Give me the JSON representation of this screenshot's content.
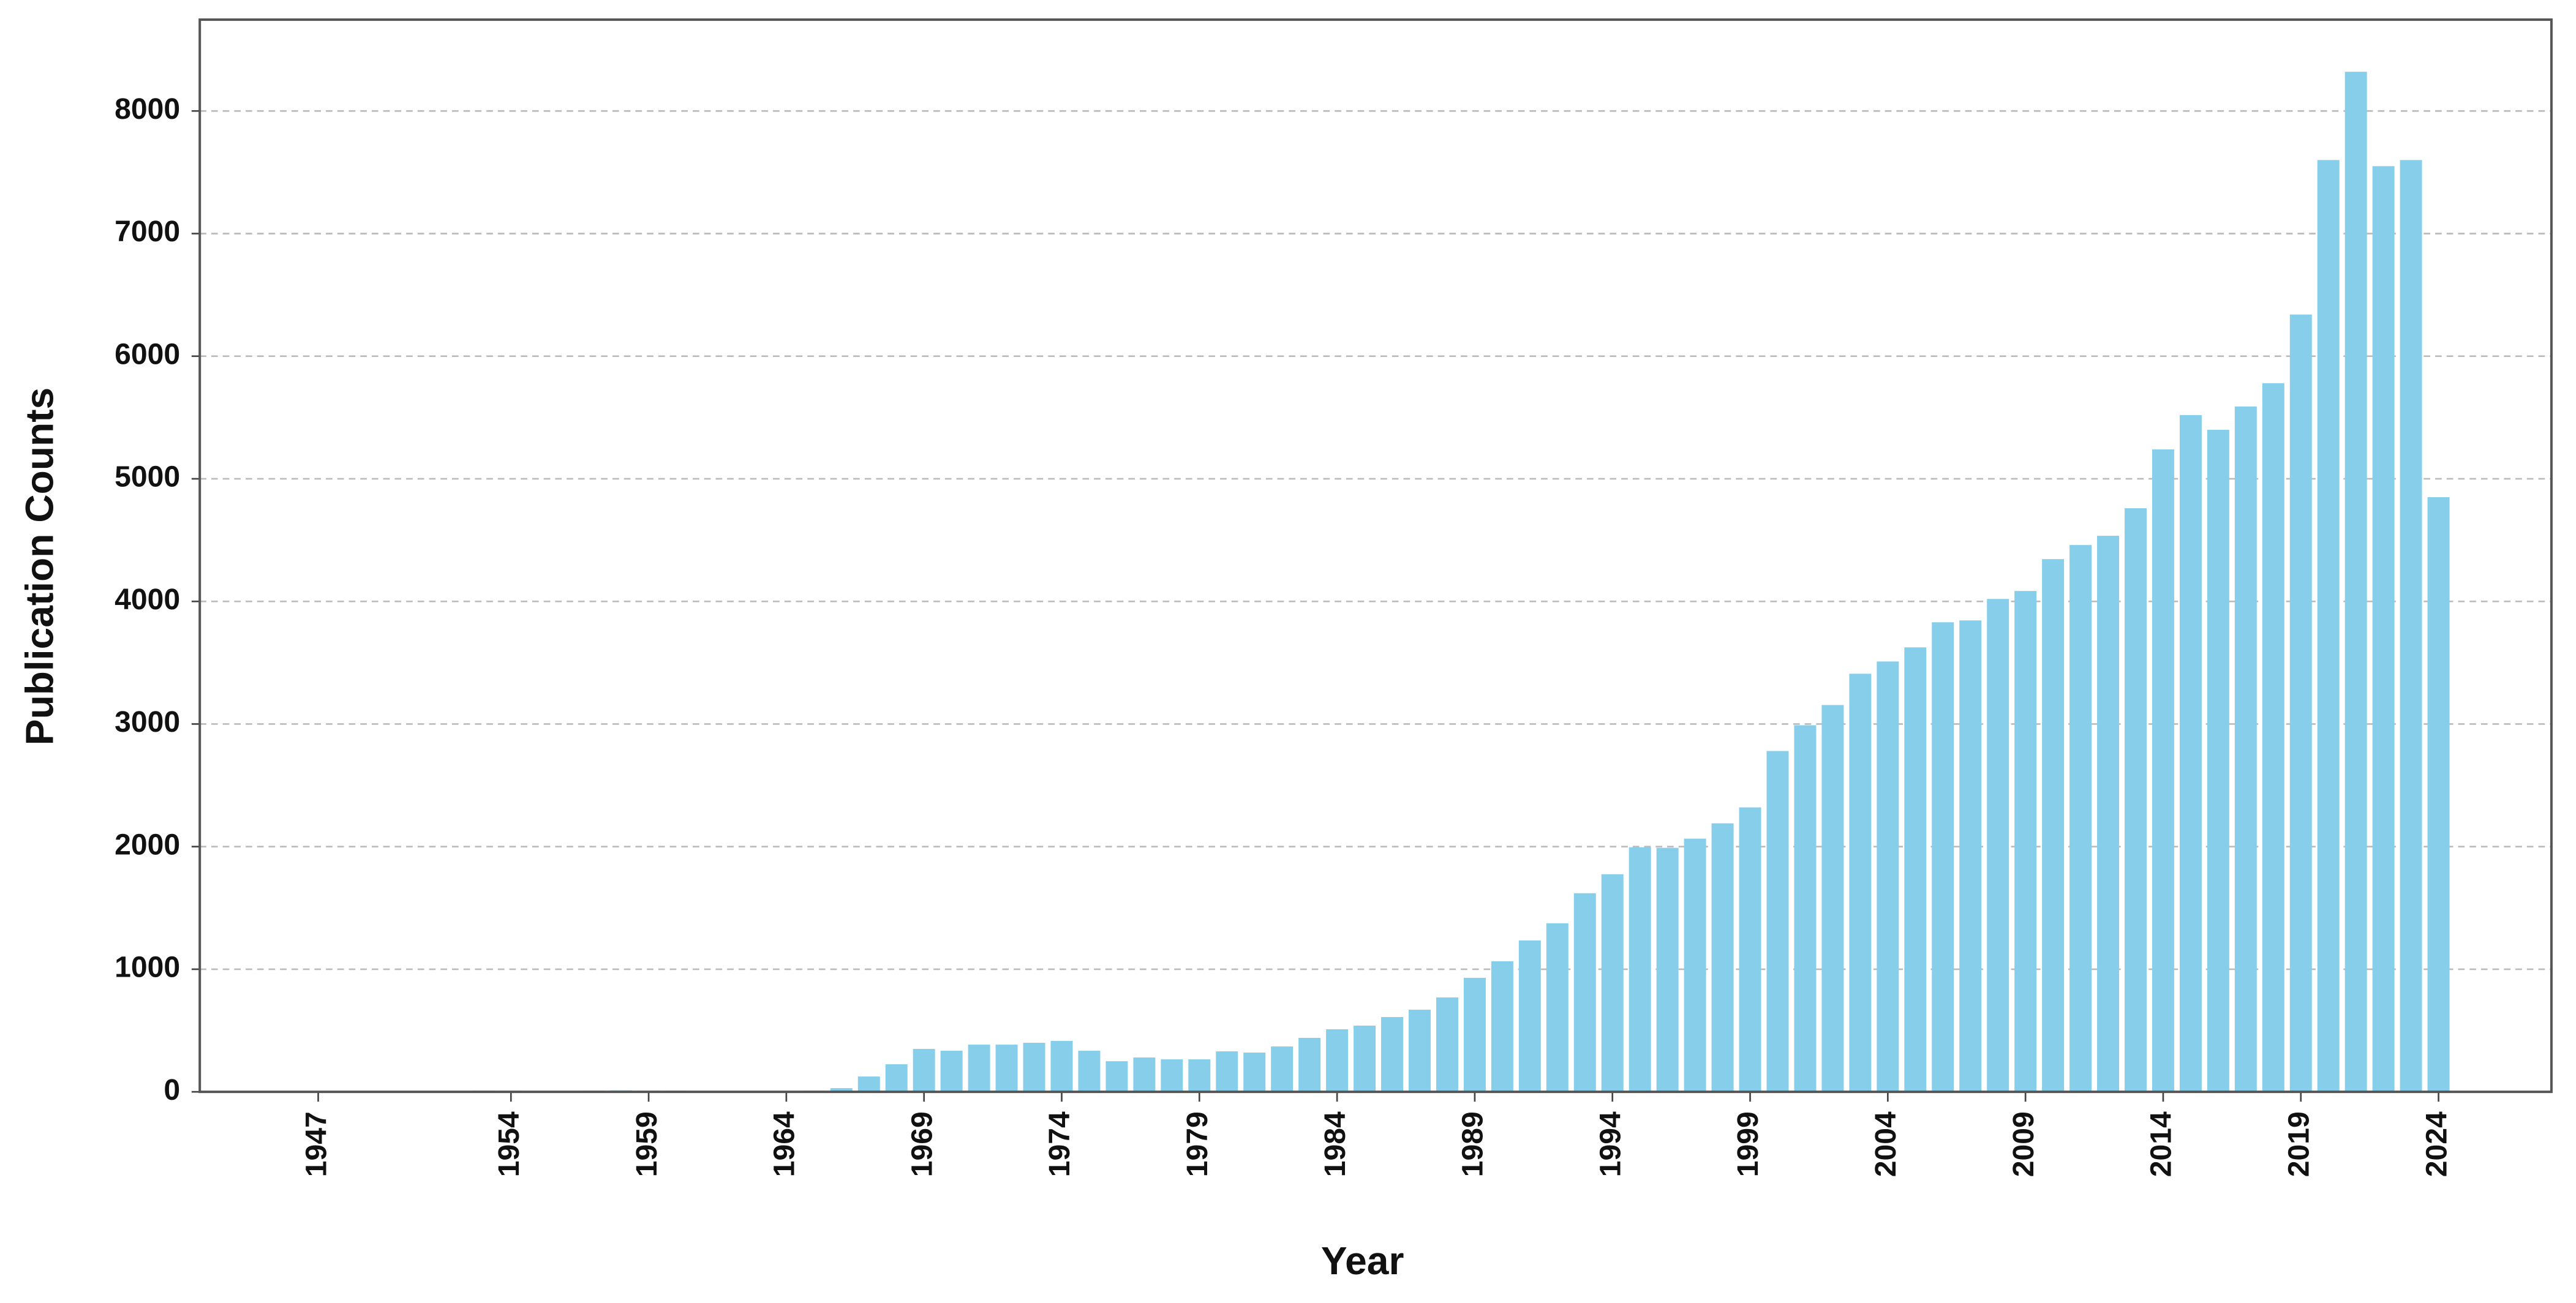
{
  "chart_data": {
    "type": "bar",
    "xlabel": "Year",
    "ylabel": "Publication Counts",
    "x": [
      1947,
      1953,
      1954,
      1955,
      1957,
      1958,
      1959,
      1960,
      1961,
      1964,
      1965,
      1966,
      1967,
      1968,
      1969,
      1970,
      1971,
      1972,
      1973,
      1974,
      1975,
      1976,
      1977,
      1978,
      1979,
      1980,
      1981,
      1982,
      1983,
      1984,
      1985,
      1986,
      1987,
      1988,
      1989,
      1990,
      1991,
      1992,
      1993,
      1994,
      1995,
      1996,
      1997,
      1998,
      1999,
      2000,
      2001,
      2002,
      2003,
      2004,
      2005,
      2006,
      2007,
      2008,
      2009,
      2010,
      2011,
      2012,
      2013,
      2014,
      2015,
      2016,
      2017,
      2018,
      2019,
      2020,
      2021,
      2022,
      2023,
      2024
    ],
    "values": [
      2,
      10,
      10,
      8,
      10,
      12,
      10,
      10,
      8,
      8,
      10,
      30,
      125,
      225,
      350,
      335,
      385,
      385,
      400,
      415,
      335,
      250,
      280,
      265,
      265,
      330,
      320,
      370,
      440,
      510,
      540,
      610,
      670,
      770,
      930,
      1065,
      1235,
      1375,
      1620,
      1775,
      1995,
      1990,
      2065,
      2190,
      2320,
      2780,
      2990,
      3155,
      3410,
      3510,
      3625,
      3830,
      3845,
      4020,
      4085,
      4345,
      4460,
      4535,
      4760,
      5240,
      5520,
      5400,
      5590,
      5780,
      6340,
      7600,
      8320,
      7550,
      7600,
      4850
    ],
    "color": "#87ceeb",
    "xlim": [
      1942.7,
      2028.1
    ],
    "xticks": [
      1947,
      1954,
      1959,
      1964,
      1969,
      1974,
      1979,
      1984,
      1989,
      1994,
      1999,
      2004,
      2009,
      2014,
      2019,
      2024
    ],
    "ylim": [
      0,
      8745
    ],
    "yticks": [
      0,
      1000,
      2000,
      3000,
      4000,
      5000,
      6000,
      7000,
      8000
    ],
    "grid": true
  }
}
